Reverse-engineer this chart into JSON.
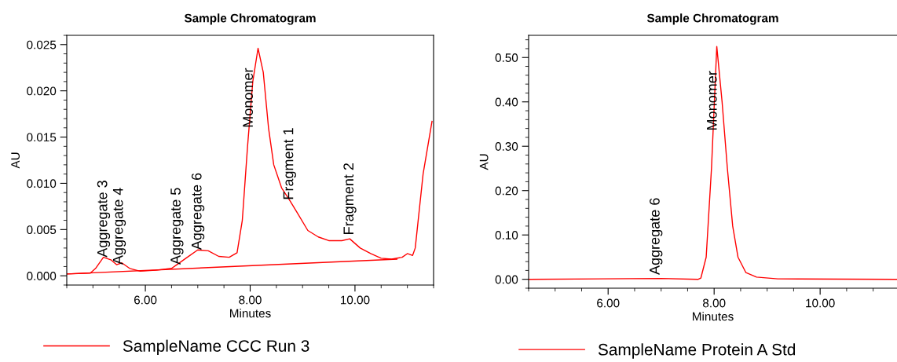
{
  "chart_data": [
    {
      "type": "line",
      "title": "Sample Chromatogram",
      "xlabel": "Minutes",
      "ylabel": "AU",
      "xlim": [
        4.5,
        11.5
      ],
      "ylim": [
        -0.001,
        0.026
      ],
      "xticks": [
        {
          "value": 6,
          "label": "6.00"
        },
        {
          "value": 8,
          "label": "8.00"
        },
        {
          "value": 10,
          "label": "10.00"
        }
      ],
      "yticks": [
        {
          "value": 0,
          "label": "0.000"
        },
        {
          "value": 0.005,
          "label": "0.005"
        },
        {
          "value": 0.01,
          "label": "0.010"
        },
        {
          "value": 0.015,
          "label": "0.015"
        },
        {
          "value": 0.02,
          "label": "0.020"
        },
        {
          "value": 0.025,
          "label": "0.025"
        }
      ],
      "grid": false,
      "legend": "bottom",
      "line_style": "solid",
      "marker": "none",
      "series": [
        {
          "name": "SampleName CCC Run 3",
          "color": "#ff0000",
          "x": [
            4.5,
            4.95,
            5.05,
            5.2,
            5.35,
            5.45,
            5.55,
            5.7,
            5.9,
            6.2,
            6.5,
            6.6,
            6.8,
            7.0,
            7.2,
            7.4,
            7.6,
            7.75,
            7.85,
            7.95,
            8.05,
            8.15,
            8.25,
            8.35,
            8.45,
            8.6,
            8.75,
            8.9,
            9.1,
            9.3,
            9.5,
            9.75,
            9.9,
            10.1,
            10.3,
            10.5,
            10.7,
            10.9,
            11.0,
            11.1,
            11.15,
            11.3,
            11.47
          ],
          "values": [
            0.0002,
            0.0003,
            0.0008,
            0.002,
            0.0017,
            0.0012,
            0.0014,
            0.0008,
            0.0005,
            0.0006,
            0.0008,
            0.0012,
            0.002,
            0.0028,
            0.0027,
            0.0021,
            0.002,
            0.0025,
            0.006,
            0.014,
            0.021,
            0.0246,
            0.022,
            0.016,
            0.012,
            0.0095,
            0.0082,
            0.0068,
            0.0049,
            0.0042,
            0.0038,
            0.0038,
            0.004,
            0.003,
            0.0024,
            0.0019,
            0.0018,
            0.002,
            0.0024,
            0.0022,
            0.003,
            0.011,
            0.0167
          ]
        },
        {
          "color": "#ff0000",
          "x": [
            4.5,
            10.8
          ],
          "values": [
            0.0002,
            0.0018
          ]
        }
      ],
      "annotations": [
        {
          "text": "Aggregate 3",
          "x": 5.2,
          "y": 0.002
        },
        {
          "text": "Aggregate 4",
          "x": 5.5,
          "y": 0.0012
        },
        {
          "text": "Aggregate 5",
          "x": 6.6,
          "y": 0.0012
        },
        {
          "text": "Aggregate 6",
          "x": 7.0,
          "y": 0.0028
        },
        {
          "text": "Monomer",
          "x": 7.98,
          "y": 0.016
        },
        {
          "text": "Fragment 1",
          "x": 8.75,
          "y": 0.0082
        },
        {
          "text": "Fragment 2",
          "x": 9.9,
          "y": 0.0044
        }
      ]
    },
    {
      "type": "line",
      "title": "Sample Chromatogram",
      "xlabel": "Minutes",
      "ylabel": "AU",
      "xlim": [
        4.5,
        11.45
      ],
      "ylim": [
        -0.02,
        0.55
      ],
      "xticks": [
        {
          "value": 6,
          "label": "6.00"
        },
        {
          "value": 8,
          "label": "8.00"
        },
        {
          "value": 10,
          "label": "10.00"
        }
      ],
      "yticks": [
        {
          "value": 0,
          "label": "0.00"
        },
        {
          "value": 0.1,
          "label": "0.10"
        },
        {
          "value": 0.2,
          "label": "0.20"
        },
        {
          "value": 0.3,
          "label": "0.30"
        },
        {
          "value": 0.4,
          "label": "0.40"
        },
        {
          "value": 0.5,
          "label": "0.50"
        }
      ],
      "grid": false,
      "legend": "bottom",
      "line_style": "solid",
      "marker": "none",
      "series": [
        {
          "name": "SampleName Protein A Std",
          "color": "#ff0000",
          "x": [
            4.5,
            7.0,
            7.7,
            7.75,
            7.85,
            7.95,
            8.05,
            8.15,
            8.25,
            8.35,
            8.45,
            8.6,
            8.8,
            9.2,
            11.45
          ],
          "values": [
            0,
            0.002,
            0,
            0.003,
            0.05,
            0.25,
            0.525,
            0.4,
            0.25,
            0.12,
            0.05,
            0.015,
            0.005,
            0.001,
            0
          ]
        }
      ],
      "annotations": [
        {
          "text": "Aggregate 6",
          "x": 6.9,
          "y": 0.01
        },
        {
          "text": "Monomer",
          "x": 7.98,
          "y": 0.335
        }
      ]
    }
  ]
}
